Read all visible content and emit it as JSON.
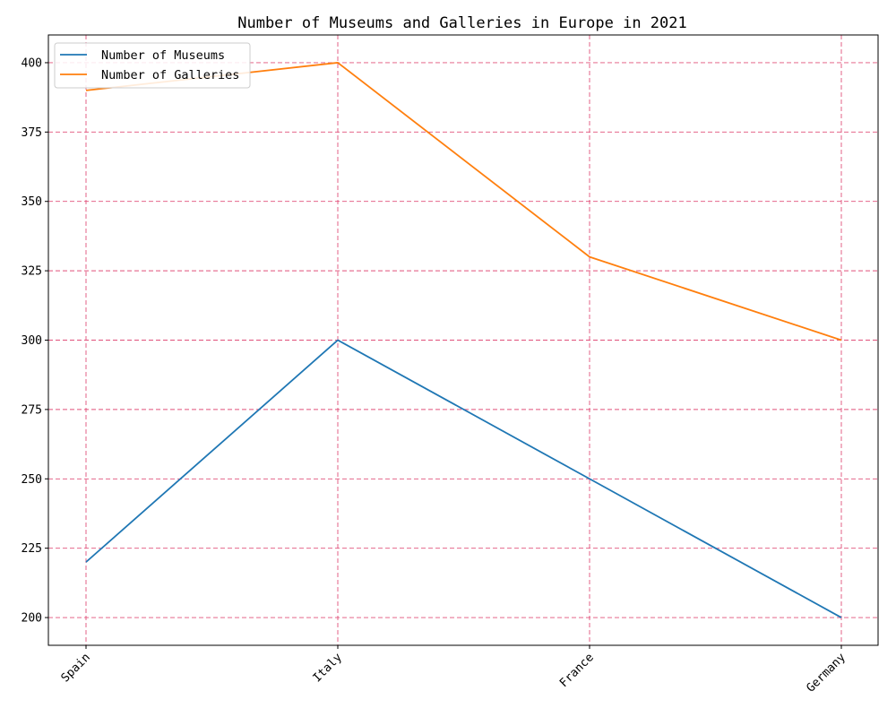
{
  "chart_data": {
    "type": "line",
    "title": "Number of Museums and Galleries in Europe in 2021",
    "xlabel": "",
    "ylabel": "",
    "categories": [
      "Spain",
      "Italy",
      "France",
      "Germany"
    ],
    "series": [
      {
        "name": "Number of Museums",
        "values": [
          220,
          300,
          250,
          200
        ],
        "color": "#1f77b4"
      },
      {
        "name": "Number of Galleries",
        "values": [
          390,
          400,
          330,
          300
        ],
        "color": "#ff7f0e"
      }
    ],
    "ylim": [
      190,
      410
    ],
    "yticks": [
      200,
      225,
      250,
      275,
      300,
      325,
      350,
      375,
      400
    ],
    "grid": true,
    "grid_color": "#e0507a",
    "legend_position": "top-left"
  }
}
